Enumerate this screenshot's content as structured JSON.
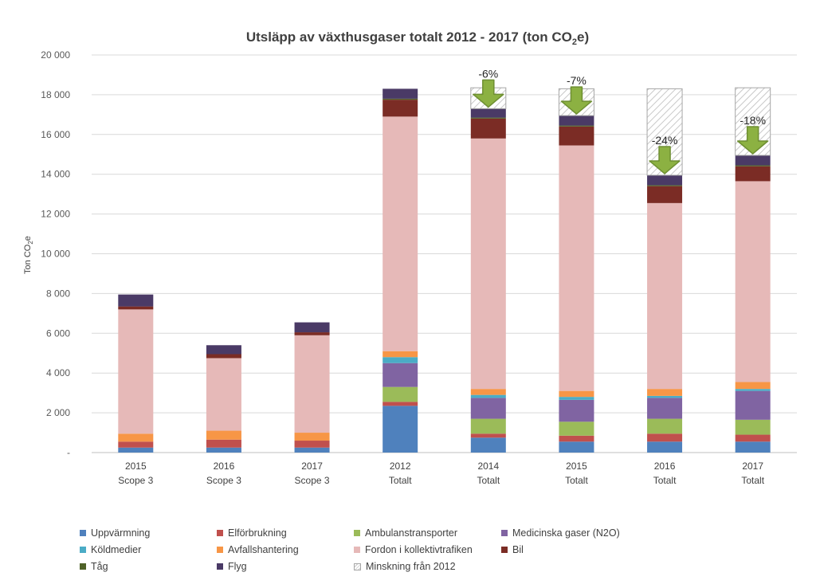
{
  "chart_data": {
    "type": "bar",
    "stacked": true,
    "title_main": "Utsläpp av växthusgaser totalt 2012 - 2017 (ton CO",
    "title_sub": "2",
    "title_end": "e)",
    "ylabel_main": "Ton CO",
    "ylabel_sub": "2",
    "ylabel_end": "e",
    "ylim": [
      0,
      20000
    ],
    "yticks": [
      {
        "value": 0,
        "label": "-"
      },
      {
        "value": 2000,
        "label": "2 000"
      },
      {
        "value": 4000,
        "label": "4 000"
      },
      {
        "value": 6000,
        "label": "6 000"
      },
      {
        "value": 8000,
        "label": "8 000"
      },
      {
        "value": 10000,
        "label": "10 000"
      },
      {
        "value": 12000,
        "label": "12 000"
      },
      {
        "value": 14000,
        "label": "14 000"
      },
      {
        "value": 16000,
        "label": "16 000"
      },
      {
        "value": 18000,
        "label": "18 000"
      },
      {
        "value": 20000,
        "label": "20 000"
      }
    ],
    "grid": true,
    "categories": [
      {
        "year": "2015",
        "group": "Scope 3"
      },
      {
        "year": "2016",
        "group": "Scope 3"
      },
      {
        "year": "2017",
        "group": "Scope 3"
      },
      {
        "year": "2012",
        "group": "Totalt"
      },
      {
        "year": "2014",
        "group": "Totalt"
      },
      {
        "year": "2015",
        "group": "Totalt"
      },
      {
        "year": "2016",
        "group": "Totalt"
      },
      {
        "year": "2017",
        "group": "Totalt"
      }
    ],
    "series": [
      {
        "name": "Uppvärmning",
        "color": "#4f81bd",
        "values": [
          250,
          250,
          250,
          2350,
          750,
          550,
          550,
          550
        ]
      },
      {
        "name": "Elförbrukning",
        "color": "#c0504d",
        "values": [
          300,
          400,
          350,
          200,
          200,
          300,
          400,
          350
        ]
      },
      {
        "name": "Ambulanstransporter",
        "color": "#9bbb59",
        "values": [
          0,
          0,
          0,
          750,
          750,
          700,
          750,
          750
        ]
      },
      {
        "name": "Medicinska gaser (N2O)",
        "color": "#8064a2",
        "values": [
          0,
          0,
          0,
          1200,
          1050,
          1100,
          1050,
          1450
        ]
      },
      {
        "name": "Köldmedier",
        "color": "#4bacc6",
        "values": [
          0,
          0,
          0,
          300,
          150,
          150,
          100,
          100
        ]
      },
      {
        "name": "Avfallshantering",
        "color": "#f79646",
        "values": [
          400,
          450,
          400,
          300,
          300,
          300,
          350,
          350
        ]
      },
      {
        "name": "Fordon i kollektivtrafiken",
        "color": "#e6b9b8",
        "values": [
          6250,
          3650,
          4900,
          11800,
          12600,
          12350,
          9350,
          10100
        ]
      },
      {
        "name": "Bil",
        "color": "#7b2c25",
        "values": [
          150,
          200,
          150,
          850,
          1000,
          950,
          850,
          750
        ]
      },
      {
        "name": "Tåg",
        "color": "#4f6228",
        "values": [
          0,
          0,
          0,
          50,
          50,
          50,
          50,
          50
        ]
      },
      {
        "name": "Flyg",
        "color": "#4a3a66",
        "values": [
          600,
          450,
          500,
          500,
          450,
          500,
          500,
          500
        ]
      },
      {
        "name": "Minskning från 2012",
        "color": "hatch",
        "values": [
          0,
          0,
          0,
          0,
          1050,
          1350,
          4350,
          3400
        ]
      }
    ],
    "annotations": [
      {
        "category_index": 4,
        "label": "-6%"
      },
      {
        "category_index": 5,
        "label": "-7%"
      },
      {
        "category_index": 6,
        "label": "-24%"
      },
      {
        "category_index": 7,
        "label": "-18%"
      }
    ],
    "legend_position": "bottom"
  }
}
